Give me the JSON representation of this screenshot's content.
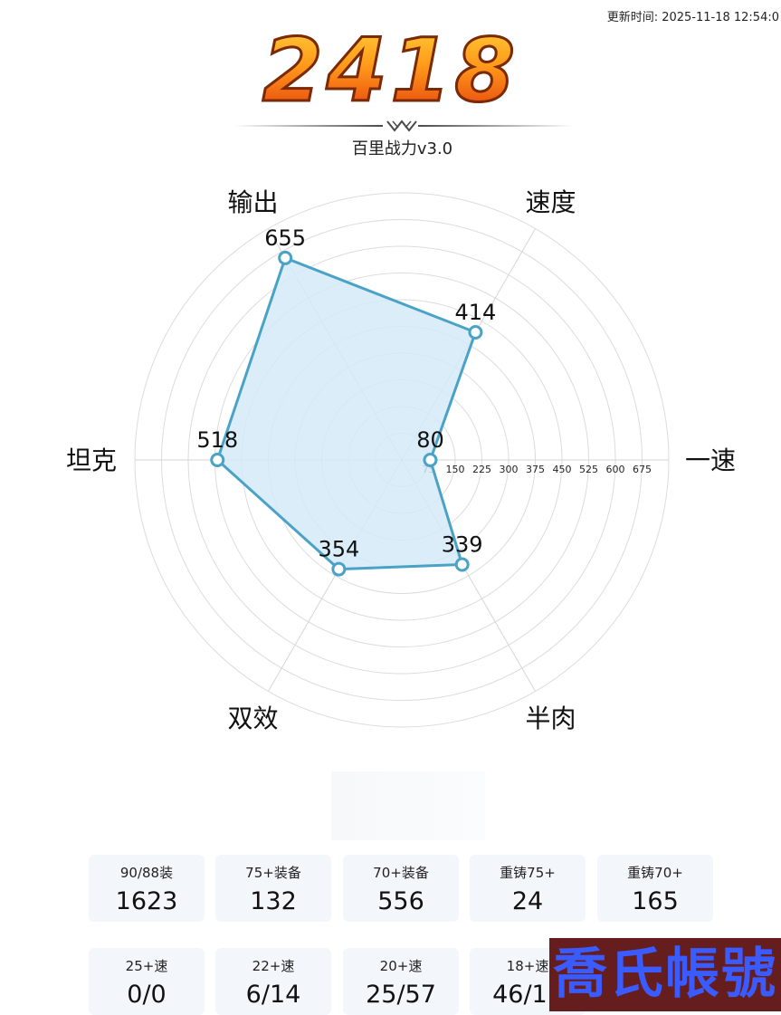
{
  "header": {
    "updated": "更新时间: 2025-11-18 12:54:0",
    "score": "2418",
    "subtitle": "百里战力v3.0"
  },
  "chart_data": {
    "type": "radar",
    "axes": [
      "一速",
      "速度",
      "输出",
      "坦克",
      "双效",
      "半肉"
    ],
    "values": [
      80,
      414,
      655,
      518,
      354,
      339
    ],
    "value_labels": [
      "80",
      "414",
      "655",
      "518",
      "354",
      "339"
    ],
    "radial_ticks": [
      "75",
      "150",
      "225",
      "300",
      "375",
      "450",
      "525",
      "600",
      "675"
    ],
    "rmax": 750,
    "fill_color": "#d3eaf7",
    "line_color": "#4aa3c6"
  },
  "stats": {
    "row1": [
      {
        "label": "90/88装",
        "value": "1623"
      },
      {
        "label": "75+装备",
        "value": "132"
      },
      {
        "label": "70+装备",
        "value": "556"
      },
      {
        "label": "重铸75+",
        "value": "24"
      },
      {
        "label": "重铸70+",
        "value": "165"
      }
    ],
    "row2": [
      {
        "label": "25+速",
        "value": "0/0"
      },
      {
        "label": "22+速",
        "value": "6/14"
      },
      {
        "label": "20+速",
        "value": "25/57"
      },
      {
        "label": "18+速",
        "value": "46/11"
      }
    ]
  },
  "watermark": "喬氏帳號"
}
